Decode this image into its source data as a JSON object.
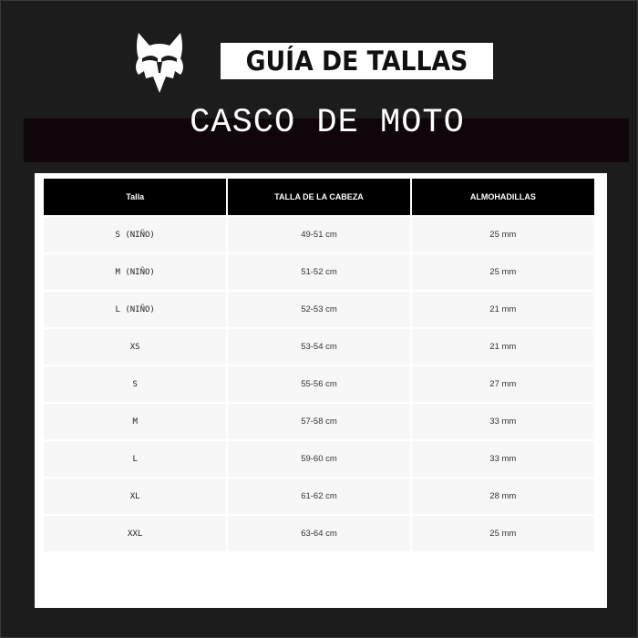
{
  "header": {
    "logo": "fox-head-logo",
    "title": "GUÍA DE TALLAS",
    "subtitle": "CASCO DE MOTO"
  },
  "table": {
    "columns": [
      "Talla",
      "TALLA DE LA CABEZA",
      "ALMOHADILLAS"
    ],
    "rows": [
      [
        "S (NIÑO)",
        "49-51 cm",
        "25 mm"
      ],
      [
        "M (NIÑO)",
        "51-52 cm",
        "25 mm"
      ],
      [
        "L (NIÑO)",
        "52-53 cm",
        "21 mm"
      ],
      [
        "XS",
        "53-54 cm",
        "21 mm"
      ],
      [
        "S",
        "55-56 cm",
        "27 mm"
      ],
      [
        "M",
        "57-58 cm",
        "33 mm"
      ],
      [
        "L",
        "59-60 cm",
        "33 mm"
      ],
      [
        "XL",
        "61-62 cm",
        "28 mm"
      ],
      [
        "XXL",
        "63-64 cm",
        "25 mm"
      ]
    ]
  }
}
